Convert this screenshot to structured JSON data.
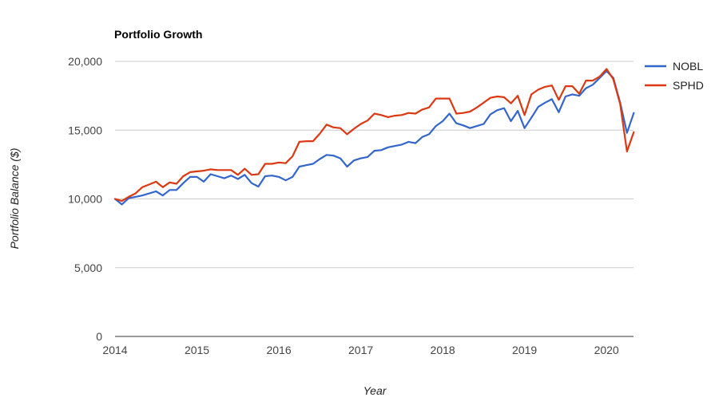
{
  "chart_data": {
    "type": "line",
    "title": "Portfolio Growth",
    "xlabel": "Year",
    "ylabel": "Portfolio Balance ($)",
    "xlim": [
      2014.0,
      2020.33
    ],
    "ylim": [
      0,
      20000
    ],
    "x_ticks": [
      "2014",
      "2015",
      "2016",
      "2017",
      "2018",
      "2019",
      "2020"
    ],
    "y_ticks": [
      "0",
      "5,000",
      "10,000",
      "15,000",
      "20,000"
    ],
    "grid": true,
    "legend_position": "right",
    "x": [
      2014.0,
      2014.083,
      2014.167,
      2014.25,
      2014.333,
      2014.417,
      2014.5,
      2014.583,
      2014.667,
      2014.75,
      2014.833,
      2014.917,
      2015.0,
      2015.083,
      2015.167,
      2015.25,
      2015.333,
      2015.417,
      2015.5,
      2015.583,
      2015.667,
      2015.75,
      2015.833,
      2015.917,
      2016.0,
      2016.083,
      2016.167,
      2016.25,
      2016.333,
      2016.417,
      2016.5,
      2016.583,
      2016.667,
      2016.75,
      2016.833,
      2016.917,
      2017.0,
      2017.083,
      2017.167,
      2017.25,
      2017.333,
      2017.417,
      2017.5,
      2017.583,
      2017.667,
      2017.75,
      2017.833,
      2017.917,
      2018.0,
      2018.083,
      2018.167,
      2018.25,
      2018.333,
      2018.417,
      2018.5,
      2018.583,
      2018.667,
      2018.75,
      2018.833,
      2018.917,
      2019.0,
      2019.083,
      2019.167,
      2019.25,
      2019.333,
      2019.417,
      2019.5,
      2019.583,
      2019.667,
      2019.75,
      2019.833,
      2019.917,
      2020.0,
      2020.083,
      2020.167,
      2020.25,
      2020.333
    ],
    "series": [
      {
        "name": "NOBL",
        "color": "#3366cc",
        "values": [
          10000,
          9600,
          10050,
          10150,
          10250,
          10400,
          10550,
          10250,
          10650,
          10650,
          11150,
          11600,
          11600,
          11250,
          11800,
          11650,
          11500,
          11700,
          11450,
          11750,
          11150,
          10900,
          11650,
          11700,
          11600,
          11350,
          11600,
          12350,
          12450,
          12550,
          12900,
          13200,
          13150,
          12950,
          12350,
          12800,
          12950,
          13050,
          13500,
          13550,
          13750,
          13850,
          13950,
          14150,
          14050,
          14500,
          14700,
          15300,
          15650,
          16200,
          15500,
          15350,
          15150,
          15300,
          15450,
          16150,
          16450,
          16600,
          15650,
          16400,
          15150,
          15900,
          16700,
          17000,
          17250,
          16300,
          17450,
          17600,
          17500,
          18050,
          18300,
          18800,
          19300,
          18800,
          17000,
          14800,
          16250
        ]
      },
      {
        "name": "SPHD",
        "color": "#dc3912",
        "values": [
          10000,
          9850,
          10150,
          10400,
          10850,
          11050,
          11250,
          10850,
          11200,
          11100,
          11650,
          11950,
          12000,
          12050,
          12150,
          12100,
          12100,
          12100,
          11750,
          12200,
          11750,
          11800,
          12550,
          12550,
          12650,
          12600,
          13100,
          14150,
          14200,
          14200,
          14750,
          15400,
          15200,
          15150,
          14700,
          15100,
          15450,
          15700,
          16200,
          16100,
          15950,
          16050,
          16100,
          16250,
          16200,
          16500,
          16650,
          17300,
          17300,
          17300,
          16200,
          16250,
          16350,
          16650,
          17000,
          17350,
          17450,
          17400,
          16950,
          17500,
          16100,
          17600,
          17950,
          18150,
          18250,
          17200,
          18200,
          18200,
          17650,
          18600,
          18600,
          18900,
          19450,
          18700,
          16900,
          13450,
          14850
        ]
      }
    ]
  }
}
